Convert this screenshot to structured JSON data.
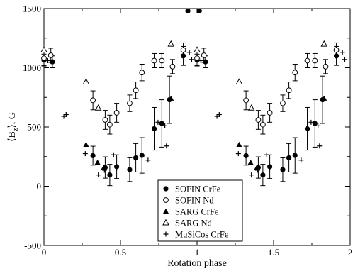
{
  "chart_data": {
    "type": "scatter",
    "title": "",
    "xlabel": "Rotation phase",
    "ylabel": "⟨B_z⟩, G",
    "ylabel_main": "⟨B",
    "ylabel_sub": "z",
    "ylabel_rest": "⟩, G",
    "xlim": [
      0,
      2
    ],
    "ylim": [
      -500,
      1500
    ],
    "xticks": [
      "0",
      "0.5",
      "1",
      "1.5",
      "2"
    ],
    "yticks": [
      "-500",
      "0",
      "500",
      "1000",
      "1500"
    ],
    "grid": false,
    "legend_position": "bottom-center",
    "series": [
      {
        "name": "SOFIN CrFe",
        "marker": "filled-circle",
        "points": [
          {
            "x": 0.0,
            "y": 1065,
            "err": 50
          },
          {
            "x": 0.055,
            "y": 1050,
            "err": 50
          },
          {
            "x": 0.32,
            "y": 258,
            "err": 80
          },
          {
            "x": 0.4,
            "y": 158,
            "err": 90
          },
          {
            "x": 0.43,
            "y": 95,
            "err": 90
          },
          {
            "x": 0.475,
            "y": 165,
            "err": 100
          },
          {
            "x": 0.56,
            "y": 140,
            "err": 100
          },
          {
            "x": 0.6,
            "y": 240,
            "err": 120
          },
          {
            "x": 0.64,
            "y": 260,
            "err": 150
          },
          {
            "x": 0.72,
            "y": 485,
            "err": 180
          },
          {
            "x": 0.77,
            "y": 530,
            "err": 200
          },
          {
            "x": 0.82,
            "y": 730,
            "err": 200
          },
          {
            "x": 0.91,
            "y": 1100,
            "err": 80
          },
          {
            "x": 0.94,
            "y": 1480,
            "err": 0
          },
          {
            "x": 1.0,
            "y": 1065,
            "err": 50
          },
          {
            "x": 1.015,
            "y": 1480,
            "err": 0
          },
          {
            "x": 1.055,
            "y": 1050,
            "err": 50
          },
          {
            "x": 1.32,
            "y": 258,
            "err": 80
          },
          {
            "x": 1.4,
            "y": 158,
            "err": 90
          },
          {
            "x": 1.43,
            "y": 95,
            "err": 90
          },
          {
            "x": 1.475,
            "y": 165,
            "err": 100
          },
          {
            "x": 1.56,
            "y": 140,
            "err": 100
          },
          {
            "x": 1.6,
            "y": 240,
            "err": 120
          },
          {
            "x": 1.64,
            "y": 260,
            "err": 150
          },
          {
            "x": 1.72,
            "y": 485,
            "err": 180
          },
          {
            "x": 1.77,
            "y": 530,
            "err": 200
          },
          {
            "x": 1.82,
            "y": 730,
            "err": 200
          },
          {
            "x": 1.91,
            "y": 1100,
            "err": 80
          }
        ]
      },
      {
        "name": "SOFIN Nd",
        "marker": "open-circle",
        "points": [
          {
            "x": 0.0,
            "y": 1080,
            "err": 60
          },
          {
            "x": 0.045,
            "y": 1105,
            "err": 60
          },
          {
            "x": 0.32,
            "y": 725,
            "err": 80
          },
          {
            "x": 0.4,
            "y": 560,
            "err": 80
          },
          {
            "x": 0.43,
            "y": 520,
            "err": 80
          },
          {
            "x": 0.475,
            "y": 620,
            "err": 80
          },
          {
            "x": 0.56,
            "y": 700,
            "err": 70
          },
          {
            "x": 0.6,
            "y": 810,
            "err": 70
          },
          {
            "x": 0.64,
            "y": 960,
            "err": 70
          },
          {
            "x": 0.72,
            "y": 1060,
            "err": 60
          },
          {
            "x": 0.77,
            "y": 1060,
            "err": 60
          },
          {
            "x": 0.84,
            "y": 1010,
            "err": 60
          },
          {
            "x": 0.91,
            "y": 1150,
            "err": 60
          },
          {
            "x": 1.0,
            "y": 1080,
            "err": 60
          },
          {
            "x": 1.045,
            "y": 1105,
            "err": 60
          },
          {
            "x": 1.32,
            "y": 725,
            "err": 80
          },
          {
            "x": 1.4,
            "y": 560,
            "err": 80
          },
          {
            "x": 1.43,
            "y": 520,
            "err": 80
          },
          {
            "x": 1.475,
            "y": 620,
            "err": 80
          },
          {
            "x": 1.56,
            "y": 700,
            "err": 70
          },
          {
            "x": 1.6,
            "y": 810,
            "err": 70
          },
          {
            "x": 1.64,
            "y": 960,
            "err": 70
          },
          {
            "x": 1.72,
            "y": 1060,
            "err": 60
          },
          {
            "x": 1.77,
            "y": 1060,
            "err": 60
          },
          {
            "x": 1.84,
            "y": 1010,
            "err": 60
          },
          {
            "x": 1.91,
            "y": 1150,
            "err": 60
          }
        ]
      },
      {
        "name": "SARG CrFe",
        "marker": "filled-triangle",
        "points": [
          {
            "x": 0.275,
            "y": 350
          },
          {
            "x": 0.35,
            "y": 200
          },
          {
            "x": 0.39,
            "y": 155
          },
          {
            "x": 0.83,
            "y": 740
          },
          {
            "x": 1.275,
            "y": 350
          },
          {
            "x": 1.35,
            "y": 200
          },
          {
            "x": 1.39,
            "y": 155
          },
          {
            "x": 1.83,
            "y": 740
          }
        ]
      },
      {
        "name": "SARG Nd",
        "marker": "open-triangle",
        "points": [
          {
            "x": 0.0,
            "y": 1150
          },
          {
            "x": 0.275,
            "y": 880
          },
          {
            "x": 0.355,
            "y": 660
          },
          {
            "x": 0.83,
            "y": 1200
          },
          {
            "x": 1.0,
            "y": 1150
          },
          {
            "x": 1.275,
            "y": 880
          },
          {
            "x": 1.355,
            "y": 660
          },
          {
            "x": 1.83,
            "y": 1200
          }
        ]
      },
      {
        "name": "MuSiCos CrFe",
        "marker": "plus",
        "points": [
          {
            "x": 0.025,
            "y": 1060
          },
          {
            "x": 0.13,
            "y": 590
          },
          {
            "x": 0.145,
            "y": 605
          },
          {
            "x": 0.27,
            "y": 275
          },
          {
            "x": 0.355,
            "y": 95
          },
          {
            "x": 0.395,
            "y": 135
          },
          {
            "x": 0.455,
            "y": 265
          },
          {
            "x": 0.68,
            "y": 220
          },
          {
            "x": 0.745,
            "y": 540
          },
          {
            "x": 0.79,
            "y": 510
          },
          {
            "x": 0.8,
            "y": 340
          },
          {
            "x": 0.95,
            "y": 1130
          },
          {
            "x": 0.965,
            "y": 1070
          },
          {
            "x": 1.025,
            "y": 1060
          },
          {
            "x": 1.13,
            "y": 590
          },
          {
            "x": 1.145,
            "y": 605
          },
          {
            "x": 1.27,
            "y": 275
          },
          {
            "x": 1.355,
            "y": 95
          },
          {
            "x": 1.395,
            "y": 135
          },
          {
            "x": 1.455,
            "y": 265
          },
          {
            "x": 1.68,
            "y": 220
          },
          {
            "x": 1.745,
            "y": 540
          },
          {
            "x": 1.79,
            "y": 510
          },
          {
            "x": 1.8,
            "y": 340
          },
          {
            "x": 1.95,
            "y": 1130
          },
          {
            "x": 1.965,
            "y": 1070
          }
        ]
      }
    ]
  }
}
